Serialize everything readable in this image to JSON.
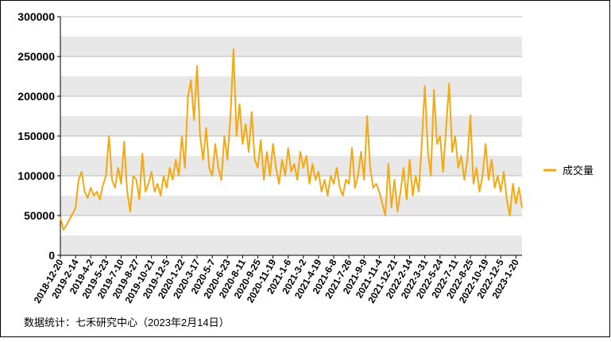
{
  "chart_data": {
    "type": "line",
    "series": [
      {
        "name": "成交量",
        "color": "#f5a80f",
        "values": [
          48000,
          32000,
          38000,
          45000,
          52000,
          60000,
          95000,
          105000,
          80000,
          72000,
          85000,
          75000,
          80000,
          70000,
          88000,
          100000,
          150000,
          95000,
          85000,
          110000,
          90000,
          143000,
          80000,
          55000,
          100000,
          95000,
          70000,
          128000,
          80000,
          90000,
          105000,
          80000,
          90000,
          75000,
          100000,
          85000,
          110000,
          95000,
          120000,
          100000,
          150000,
          110000,
          200000,
          220000,
          170000,
          238000,
          150000,
          120000,
          160000,
          110000,
          100000,
          140000,
          110000,
          95000,
          150000,
          120000,
          175000,
          259000,
          150000,
          190000,
          140000,
          165000,
          130000,
          180000,
          120000,
          110000,
          145000,
          95000,
          130000,
          100000,
          140000,
          110000,
          90000,
          120000,
          100000,
          135000,
          105000,
          115000,
          95000,
          130000,
          110000,
          125000,
          90000,
          115000,
          95000,
          105000,
          80000,
          95000,
          75000,
          100000,
          90000,
          110000,
          85000,
          75000,
          95000,
          90000,
          135000,
          85000,
          100000,
          130000,
          95000,
          175000,
          110000,
          85000,
          90000,
          80000,
          65000,
          50000,
          115000,
          60000,
          95000,
          55000,
          80000,
          110000,
          70000,
          120000,
          75000,
          100000,
          80000,
          140000,
          213000,
          130000,
          100000,
          208000,
          140000,
          150000,
          105000,
          160000,
          216000,
          130000,
          150000,
          110000,
          125000,
          95000,
          120000,
          176000,
          90000,
          110000,
          80000,
          100000,
          140000,
          95000,
          120000,
          85000,
          100000,
          80000,
          105000,
          70000,
          50000,
          90000,
          65000,
          85000,
          60000
        ]
      }
    ],
    "categories": [
      "2018-12-20",
      null,
      null,
      null,
      null,
      "2019-2-14",
      null,
      null,
      null,
      null,
      "2019-4-2",
      null,
      null,
      null,
      null,
      "2019-5-23",
      null,
      null,
      null,
      null,
      "2019-7-10",
      null,
      null,
      null,
      null,
      "2019-8-27",
      null,
      null,
      null,
      null,
      "2019-10-21",
      null,
      null,
      null,
      null,
      "2019-12-5",
      null,
      null,
      null,
      null,
      "2020-1-22",
      null,
      null,
      null,
      null,
      "2020-3-17",
      null,
      null,
      null,
      null,
      "2020-5-7",
      null,
      null,
      null,
      null,
      "2020-6-23",
      null,
      null,
      null,
      null,
      "2020-8-11",
      null,
      null,
      null,
      null,
      "2020-9-25",
      null,
      null,
      null,
      null,
      "2020-11-19",
      null,
      null,
      null,
      null,
      "2021-1-6",
      null,
      null,
      null,
      null,
      "2021-3-2",
      null,
      null,
      null,
      null,
      "2021-4-19",
      null,
      null,
      null,
      null,
      "2021-6-8",
      null,
      null,
      null,
      null,
      "2021-7-26",
      null,
      null,
      null,
      null,
      "2021-9-9",
      null,
      null,
      null,
      null,
      "2021-11-4",
      null,
      null,
      null,
      null,
      "2021-12-21",
      null,
      null,
      null,
      null,
      "2022-2-14",
      null,
      null,
      null,
      null,
      "2022-3-31",
      null,
      null,
      null,
      null,
      "2022-5-24",
      null,
      null,
      null,
      null,
      "2022-7-11",
      null,
      null,
      null,
      null,
      "2022-8-25",
      null,
      null,
      null,
      null,
      "2022-10-19",
      null,
      null,
      null,
      null,
      "2022-12-5",
      null,
      null,
      null,
      null,
      "2023-1-20",
      null,
      null
    ],
    "ylim": [
      0,
      300000
    ],
    "yticks": [
      0,
      50000,
      100000,
      150000,
      200000,
      250000,
      300000
    ],
    "grid": true,
    "legend": "right",
    "source": "数据统计：七禾研究中心（2023年2月14日）"
  }
}
